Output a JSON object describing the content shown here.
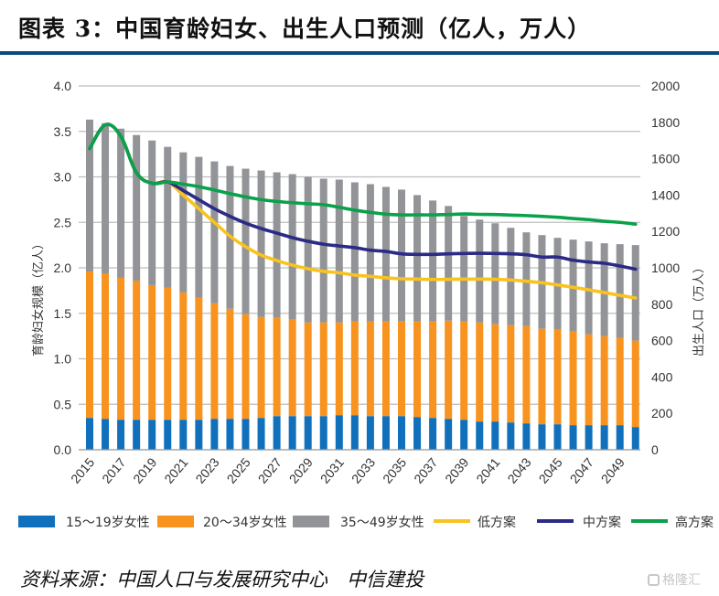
{
  "header": {
    "title": "图表 3：中国育龄妇女、出生人口预测（亿人，万人）"
  },
  "footer": {
    "source": "资料来源：中国人口与发展研究中心　中信建投",
    "watermark": "格隆汇"
  },
  "chart_data": {
    "type": "bar",
    "title": "中国育龄妇女、出生人口预测（亿人，万人）",
    "ylabel": "育龄妇女规模（亿人）",
    "y2label": "出生人口（万人）",
    "xlabel": "",
    "ylim": [
      0,
      4.0
    ],
    "y2lim": [
      0,
      2000
    ],
    "yticks": [
      "0.0",
      "0.5",
      "1.0",
      "1.5",
      "2.0",
      "2.5",
      "3.0",
      "3.5",
      "4.0"
    ],
    "y2ticks": [
      "0",
      "200",
      "400",
      "600",
      "800",
      "1000",
      "1200",
      "1400",
      "1600",
      "1800",
      "2000"
    ],
    "grid": true,
    "legend_position": "bottom",
    "categories": [
      "2015",
      "2016",
      "2017",
      "2018",
      "2019",
      "2020",
      "2021",
      "2022",
      "2023",
      "2024",
      "2025",
      "2026",
      "2027",
      "2028",
      "2029",
      "2030",
      "2031",
      "2032",
      "2033",
      "2034",
      "2035",
      "2036",
      "2037",
      "2038",
      "2039",
      "2040",
      "2041",
      "2042",
      "2043",
      "2044",
      "2045",
      "2046",
      "2047",
      "2048",
      "2049",
      "2050"
    ],
    "xtick_labels": [
      "2015",
      "2017",
      "2019",
      "2021",
      "2023",
      "2025",
      "2027",
      "2029",
      "2031",
      "2033",
      "2035",
      "2037",
      "2039",
      "2041",
      "2043",
      "2045",
      "2047",
      "2049"
    ],
    "stacked": true,
    "series": [
      {
        "name": "15～19岁女性",
        "type": "bar",
        "axis": "left",
        "color": "#1170bb",
        "values": [
          0.35,
          0.34,
          0.33,
          0.33,
          0.33,
          0.33,
          0.33,
          0.33,
          0.34,
          0.34,
          0.34,
          0.35,
          0.37,
          0.37,
          0.37,
          0.37,
          0.38,
          0.38,
          0.37,
          0.37,
          0.37,
          0.36,
          0.35,
          0.34,
          0.33,
          0.31,
          0.31,
          0.3,
          0.29,
          0.28,
          0.28,
          0.27,
          0.27,
          0.27,
          0.27,
          0.25
        ]
      },
      {
        "name": "20～34岁女性",
        "type": "bar",
        "axis": "left",
        "color": "#f7931e",
        "values": [
          1.61,
          1.6,
          1.56,
          1.53,
          1.48,
          1.45,
          1.4,
          1.34,
          1.27,
          1.21,
          1.15,
          1.11,
          1.08,
          1.06,
          1.03,
          1.03,
          1.02,
          1.03,
          1.04,
          1.04,
          1.04,
          1.05,
          1.06,
          1.08,
          1.08,
          1.09,
          1.07,
          1.07,
          1.07,
          1.05,
          1.04,
          1.03,
          1.0,
          0.98,
          0.96,
          0.95
        ]
      },
      {
        "name": "35～49岁女性",
        "type": "bar",
        "axis": "left",
        "color": "#929497",
        "values": [
          1.67,
          1.65,
          1.64,
          1.6,
          1.59,
          1.55,
          1.54,
          1.55,
          1.56,
          1.57,
          1.6,
          1.61,
          1.6,
          1.6,
          1.6,
          1.58,
          1.57,
          1.53,
          1.51,
          1.48,
          1.45,
          1.39,
          1.33,
          1.26,
          1.16,
          1.13,
          1.11,
          1.07,
          1.03,
          1.03,
          1.01,
          1.01,
          1.02,
          1.02,
          1.03,
          1.05
        ]
      },
      {
        "name": "低方案",
        "type": "line",
        "axis": "right",
        "color": "#f9c31f",
        "values": [
          1655,
          1786,
          1723,
          1523,
          1465,
          1472,
          1400,
          1325,
          1250,
          1174,
          1116,
          1070,
          1040,
          1015,
          995,
          981,
          973,
          960,
          953,
          945,
          940,
          938,
          936,
          937,
          938,
          938,
          937,
          933,
          926,
          918,
          906,
          893,
          879,
          864,
          849,
          834
        ]
      },
      {
        "name": "中方案",
        "type": "line",
        "axis": "right",
        "color": "#2b2a86",
        "values": [
          1655,
          1786,
          1723,
          1523,
          1465,
          1472,
          1425,
          1375,
          1325,
          1283,
          1246,
          1216,
          1191,
          1166,
          1146,
          1130,
          1120,
          1111,
          1097,
          1090,
          1077,
          1074,
          1074,
          1077,
          1079,
          1080,
          1079,
          1077,
          1072,
          1059,
          1059,
          1042,
          1032,
          1025,
          1010,
          993
        ]
      },
      {
        "name": "高方案",
        "type": "line",
        "axis": "right",
        "color": "#0aa14b",
        "values": [
          1655,
          1786,
          1723,
          1523,
          1465,
          1472,
          1460,
          1446,
          1428,
          1408,
          1390,
          1375,
          1365,
          1358,
          1352,
          1347,
          1333,
          1317,
          1305,
          1295,
          1291,
          1291,
          1291,
          1293,
          1296,
          1294,
          1293,
          1290,
          1287,
          1283,
          1278,
          1271,
          1265,
          1256,
          1250,
          1240
        ]
      }
    ]
  }
}
